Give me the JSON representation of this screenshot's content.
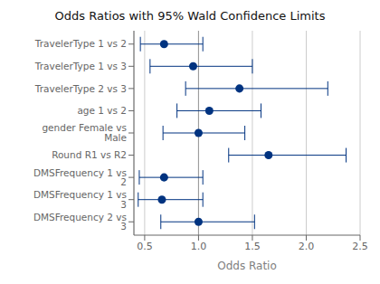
{
  "chart_data": {
    "type": "forest",
    "title": "Odds Ratios with 95% Wald Confidence Limits",
    "xlabel": "Odds Ratio",
    "categories": [
      "TravelerType 1 vs 2",
      "TravelerType 1 vs 3",
      "TravelerType 2 vs 3",
      "age 1 vs 2",
      "gender Female vs Male",
      "Round R1 vs R2",
      "DMSFrequency 1 vs 2",
      "DMSFrequency 1 vs 3",
      "DMSFrequency 2 vs 3"
    ],
    "values": [
      0.68,
      0.95,
      1.38,
      1.1,
      1.0,
      1.65,
      0.68,
      0.66,
      1.0
    ],
    "ci_low": [
      0.46,
      0.55,
      0.88,
      0.8,
      0.67,
      1.28,
      0.45,
      0.44,
      0.65
    ],
    "ci_high": [
      1.04,
      1.5,
      2.2,
      1.58,
      1.43,
      2.37,
      1.04,
      1.04,
      1.52
    ],
    "xlim": [
      0.4,
      2.5
    ],
    "xticks": [
      0.5,
      {
        "value": 1.0,
        "label": "1.0"
      },
      1.5,
      {
        "value": 2.0,
        "label": "2.0"
      },
      2.5
    ],
    "vline": 1.0,
    "color": "#003380",
    "grid": true
  }
}
